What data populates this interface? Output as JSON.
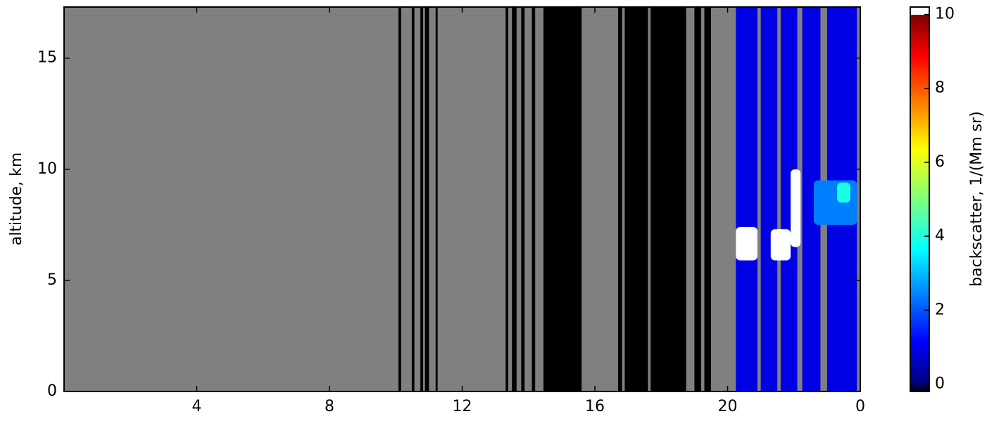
{
  "chart_data": {
    "type": "heatmap",
    "y_label": "altitude, km",
    "xlim": [
      0,
      24
    ],
    "xticks": [
      4,
      8,
      12,
      16,
      20,
      {
        "value": 24,
        "label": "0"
      }
    ],
    "ylim": [
      0,
      17.3
    ],
    "yticks": [
      0,
      5,
      10,
      15
    ],
    "background_color": "#808080",
    "colorbar": {
      "label": "backscatter, 1/(Mm sr)",
      "clim": [
        -0.2,
        10.2
      ],
      "ticks": [
        0,
        2,
        4,
        6,
        8,
        10
      ],
      "colormap": "jet"
    },
    "bands": [
      {
        "x0": 10.08,
        "x1": 10.16,
        "value": 0
      },
      {
        "x0": 10.48,
        "x1": 10.56,
        "value": 0
      },
      {
        "x0": 10.74,
        "x1": 10.82,
        "value": 0
      },
      {
        "x0": 10.88,
        "x1": 11.0,
        "value": 0
      },
      {
        "x0": 11.2,
        "x1": 11.26,
        "value": 0
      },
      {
        "x0": 13.31,
        "x1": 13.39,
        "value": 0
      },
      {
        "x0": 13.5,
        "x1": 13.64,
        "value": 0
      },
      {
        "x0": 13.78,
        "x1": 13.88,
        "value": 0
      },
      {
        "x0": 14.1,
        "x1": 14.2,
        "value": 0
      },
      {
        "x0": 14.45,
        "x1": 15.6,
        "value": 0
      },
      {
        "x0": 16.7,
        "x1": 16.82,
        "value": 0
      },
      {
        "x0": 16.9,
        "x1": 17.6,
        "value": 0
      },
      {
        "x0": 17.68,
        "x1": 18.75,
        "value": 0
      },
      {
        "x0": 19.0,
        "x1": 19.2,
        "value": 0
      },
      {
        "x0": 19.3,
        "x1": 19.5,
        "value": 0
      },
      {
        "x0": 20.25,
        "x1": 20.9,
        "value": 1
      },
      {
        "x0": 21.0,
        "x1": 21.5,
        "value": 1
      },
      {
        "x0": 21.6,
        "x1": 22.1,
        "value": 1
      },
      {
        "x0": 22.25,
        "x1": 22.8,
        "value": 1
      },
      {
        "x0": 23.0,
        "x1": 23.9,
        "value": 1
      }
    ],
    "clouds": [
      {
        "x0": 20.25,
        "x1": 20.9,
        "y0": 5.9,
        "y1": 7.4,
        "value": 10
      },
      {
        "x0": 21.3,
        "x1": 21.9,
        "y0": 5.9,
        "y1": 7.3,
        "value": 10
      },
      {
        "x0": 21.9,
        "x1": 22.2,
        "y0": 6.5,
        "y1": 10,
        "value": 10
      },
      {
        "x0": 22.6,
        "x1": 23.9,
        "y0": 7.5,
        "y1": 9.5,
        "value": 2.5
      },
      {
        "x0": 23.3,
        "x1": 23.7,
        "y0": 8.5,
        "y1": 9.4,
        "value": 4
      }
    ]
  }
}
